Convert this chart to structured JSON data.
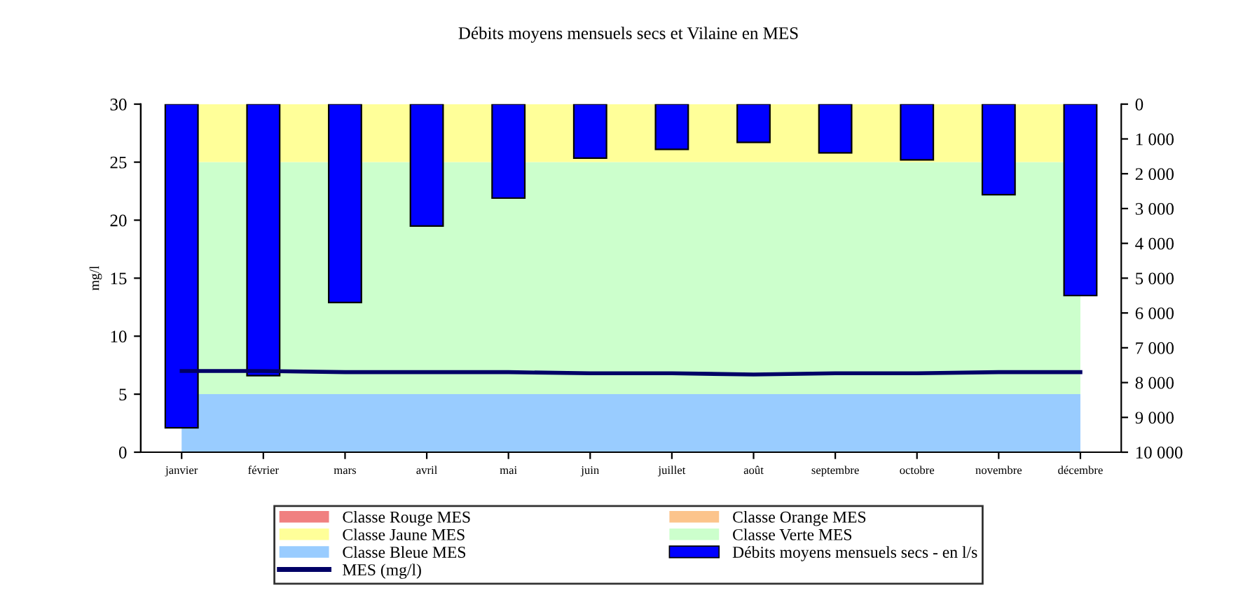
{
  "chart_data": {
    "type": "bar",
    "title": "Débits moyens mensuels secs et Vilaine en MES",
    "ylabel": "mg/l",
    "categories": [
      "janvier",
      "février",
      "mars",
      "avril",
      "mai",
      "juin",
      "juillet",
      "août",
      "septembre",
      "octobre",
      "novembre",
      "décembre"
    ],
    "stacked": true,
    "series": [
      {
        "name": "Classe Bleue MES",
        "type": "area",
        "color": "#99ccff",
        "values": [
          5,
          5,
          5,
          5,
          5,
          5,
          5,
          5,
          5,
          5,
          5,
          5
        ]
      },
      {
        "name": "Classe Verte MES",
        "type": "area",
        "color": "#ccffcc",
        "values": [
          20,
          20,
          20,
          20,
          20,
          20,
          20,
          20,
          20,
          20,
          20,
          20
        ]
      },
      {
        "name": "Classe Jaune MES",
        "type": "area",
        "color": "#ffff99",
        "values": [
          5,
          5,
          5,
          5,
          5,
          5,
          5,
          5,
          5,
          5,
          5,
          5
        ]
      },
      {
        "name": "Classe Orange MES",
        "type": "area",
        "color": "#fcc48c",
        "values": [
          null,
          null,
          null,
          null,
          null,
          null,
          null,
          null,
          null,
          null,
          null,
          null
        ]
      },
      {
        "name": "Classe Rouge MES",
        "type": "area",
        "color": "#f08080",
        "values": [
          null,
          null,
          null,
          null,
          null,
          null,
          null,
          null,
          null,
          null,
          null,
          null
        ]
      },
      {
        "name": "Débits moyens mensuels secs - en l/s",
        "axis": "y2",
        "color": "#0000ff",
        "values": [
          9300,
          7800,
          5700,
          3500,
          2700,
          1550,
          1300,
          1100,
          1400,
          1600,
          2600,
          5500
        ]
      },
      {
        "name": "MES (mg/l)",
        "type": "line",
        "color": "#000066",
        "values": [
          7.0,
          7.0,
          6.9,
          6.9,
          6.9,
          6.8,
          6.8,
          6.7,
          6.8,
          6.8,
          6.9,
          6.9
        ]
      }
    ],
    "ylim": [
      0,
      30
    ],
    "yticks": [
      0,
      5,
      10,
      15,
      20,
      25,
      30
    ],
    "y2lim": [
      10000,
      0
    ],
    "y2ticks": [
      0,
      {
        "value": 1000,
        "label": "1 000"
      },
      {
        "value": 2000,
        "label": "2 000"
      },
      {
        "value": 3000,
        "label": "3 000"
      },
      {
        "value": 4000,
        "label": "4 000"
      },
      {
        "value": 5000,
        "label": "5 000"
      },
      {
        "value": 6000,
        "label": "6 000"
      },
      {
        "value": 7000,
        "label": "7 000"
      },
      {
        "value": 8000,
        "label": "8 000"
      },
      {
        "value": 9000,
        "label": "9 000"
      },
      {
        "value": 10000,
        "label": "10 000"
      }
    ],
    "legend": "bottom",
    "grid": false
  }
}
